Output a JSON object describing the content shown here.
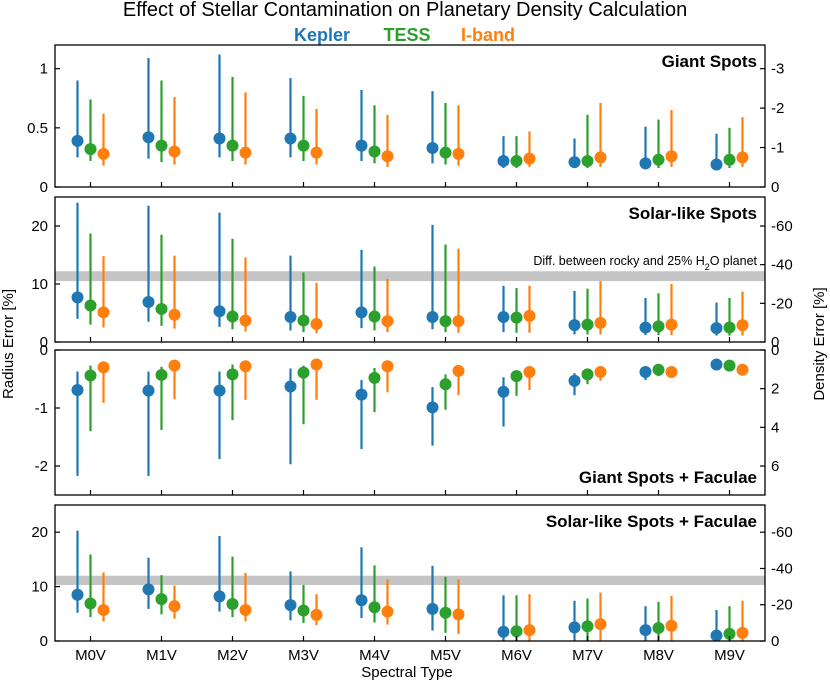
{
  "title": "Effect of Stellar Contamination on Planetary Density Calculation",
  "legend": [
    {
      "label": "Kepler",
      "color": "#1f77b4"
    },
    {
      "label": "TESS",
      "color": "#2ca02c"
    },
    {
      "label": "I-band",
      "color": "#ff7f0e"
    }
  ],
  "chart_data": {
    "type": "scatter",
    "x_label": "Spectral Type",
    "y_label": "Radius Error [%]",
    "y2_label": "Density Error [%]",
    "categories": [
      "M0V",
      "M1V",
      "M2V",
      "M3V",
      "M4V",
      "M5V",
      "M6V",
      "M7V",
      "M8V",
      "M9V"
    ],
    "panels": [
      {
        "title": "Giant Spots",
        "ylim": [
          0,
          1.2
        ],
        "yticks": [
          0,
          0.5,
          1
        ],
        "ytick_labels": [
          "0",
          "0.5",
          "1"
        ],
        "y2ticks": [
          0,
          -1,
          -2,
          -3
        ],
        "y2_factor": -3,
        "title_pos": "top",
        "series": [
          {
            "name": "Kepler",
            "values": [
              0.39,
              0.42,
              0.41,
              0.41,
              0.35,
              0.33,
              0.22,
              0.21,
              0.2,
              0.19
            ],
            "err_low": [
              0.25,
              0.24,
              0.25,
              0.25,
              0.22,
              0.2,
              0.16,
              0.16,
              0.15,
              0.15
            ],
            "err_high": [
              0.9,
              1.09,
              1.12,
              0.92,
              0.82,
              0.81,
              0.43,
              0.41,
              0.51,
              0.45
            ]
          },
          {
            "name": "TESS",
            "values": [
              0.32,
              0.35,
              0.35,
              0.35,
              0.3,
              0.29,
              0.22,
              0.22,
              0.23,
              0.23
            ],
            "err_low": [
              0.22,
              0.21,
              0.22,
              0.22,
              0.2,
              0.19,
              0.16,
              0.16,
              0.16,
              0.16
            ],
            "err_high": [
              0.74,
              0.9,
              0.93,
              0.77,
              0.69,
              0.71,
              0.43,
              0.61,
              0.57,
              0.5
            ]
          },
          {
            "name": "I-band",
            "values": [
              0.28,
              0.3,
              0.29,
              0.29,
              0.26,
              0.28,
              0.24,
              0.25,
              0.26,
              0.25
            ],
            "err_low": [
              0.18,
              0.19,
              0.19,
              0.19,
              0.17,
              0.18,
              0.17,
              0.17,
              0.17,
              0.17
            ],
            "err_high": [
              0.62,
              0.76,
              0.8,
              0.66,
              0.61,
              0.69,
              0.47,
              0.71,
              0.65,
              0.59
            ]
          }
        ]
      },
      {
        "title": "Solar-like Spots",
        "ylim": [
          0,
          25
        ],
        "yticks": [
          0,
          10,
          20
        ],
        "ytick_labels": [
          "0",
          "10",
          "20"
        ],
        "y2ticks": [
          0,
          -20,
          -40,
          -60
        ],
        "y2_factor": -3,
        "title_pos": "top",
        "band": {
          "range": [
            10.5,
            12.2
          ],
          "label": "Diff. between rocky and 25% H",
          "label_sub": "2",
          "label_tail": "O planet"
        },
        "series": [
          {
            "name": "Kepler",
            "values": [
              7.7,
              6.9,
              5.3,
              4.3,
              5.1,
              4.3,
              4.3,
              2.9,
              2.5,
              2.4
            ],
            "err_low": [
              4.0,
              3.5,
              2.6,
              2.0,
              2.4,
              2.2,
              1.7,
              1.3,
              1.2,
              1.1
            ],
            "err_high": [
              24.0,
              23.5,
              22.3,
              14.9,
              15.9,
              20.2,
              9.7,
              8.8,
              7.6,
              6.8
            ]
          },
          {
            "name": "TESS",
            "values": [
              6.3,
              5.7,
              4.4,
              3.7,
              4.4,
              3.6,
              4.2,
              3.0,
              2.7,
              2.5
            ],
            "err_low": [
              3.0,
              2.8,
              2.2,
              1.7,
              2.0,
              1.7,
              1.6,
              1.3,
              1.2,
              1.1
            ],
            "err_high": [
              18.7,
              18.5,
              17.8,
              12.0,
              13.0,
              16.8,
              9.3,
              9.2,
              8.4,
              7.6
            ]
          },
          {
            "name": "I-band",
            "values": [
              5.1,
              4.7,
              3.7,
              3.1,
              3.6,
              3.6,
              4.5,
              3.3,
              3.0,
              2.9
            ],
            "err_low": [
              2.5,
              2.3,
              1.8,
              1.5,
              1.7,
              1.6,
              1.6,
              1.3,
              1.2,
              1.1
            ],
            "err_high": [
              14.8,
              14.9,
              14.6,
              10.2,
              10.9,
              16.1,
              9.7,
              10.5,
              10.0,
              8.7
            ]
          }
        ]
      },
      {
        "title": "Giant Spots + Faculae",
        "ylim": [
          -2.5,
          0
        ],
        "yticks": [
          0,
          -1,
          -2
        ],
        "ytick_labels": [
          "0",
          "-1",
          "-2"
        ],
        "y2ticks": [
          0,
          2,
          4,
          6
        ],
        "y2_factor": -3,
        "title_pos": "bottom",
        "series": [
          {
            "name": "Kepler",
            "values": [
              -0.69,
              -0.7,
              -0.7,
              -0.63,
              -0.77,
              -0.99,
              -0.72,
              -0.53,
              -0.38,
              -0.25
            ],
            "err_low": [
              -2.17,
              -2.17,
              -1.88,
              -1.97,
              -1.71,
              -1.65,
              -1.32,
              -0.78,
              -0.52,
              -0.29
            ],
            "err_high": [
              -0.37,
              -0.37,
              -0.37,
              -0.32,
              -0.52,
              -0.64,
              -0.47,
              -0.4,
              -0.3,
              -0.21
            ]
          },
          {
            "name": "TESS",
            "values": [
              -0.44,
              -0.43,
              -0.42,
              -0.39,
              -0.48,
              -0.59,
              -0.45,
              -0.42,
              -0.34,
              -0.27
            ],
            "err_low": [
              -1.4,
              -1.38,
              -1.21,
              -1.28,
              -1.07,
              -1.03,
              -0.79,
              -0.59,
              -0.45,
              -0.31
            ],
            "err_high": [
              -0.27,
              -0.29,
              -0.25,
              -0.27,
              -0.31,
              -0.42,
              -0.37,
              -0.34,
              -0.27,
              -0.23
            ]
          },
          {
            "name": "I-band",
            "values": [
              -0.3,
              -0.27,
              -0.28,
              -0.25,
              -0.28,
              -0.36,
              -0.38,
              -0.38,
              -0.38,
              -0.34
            ],
            "err_low": [
              -0.91,
              -0.85,
              -0.86,
              -0.86,
              -0.73,
              -0.78,
              -0.69,
              -0.53,
              -0.47,
              -0.39
            ],
            "err_high": [
              -0.22,
              -0.2,
              -0.22,
              -0.18,
              -0.22,
              -0.27,
              -0.32,
              -0.33,
              -0.34,
              -0.29
            ]
          }
        ]
      },
      {
        "title": "Solar-like Spots + Faculae",
        "ylim": [
          0,
          25
        ],
        "yticks": [
          0,
          10,
          20
        ],
        "ytick_labels": [
          "0",
          "10",
          "20"
        ],
        "y2ticks": [
          0,
          -20,
          -40,
          -60
        ],
        "y2_factor": -3,
        "title_pos": "top",
        "band": {
          "range": [
            10.3,
            12.0
          ],
          "label": "",
          "label_sub": "",
          "label_tail": ""
        },
        "series": [
          {
            "name": "Kepler",
            "values": [
              8.5,
              9.5,
              8.2,
              6.6,
              7.5,
              5.9,
              1.7,
              2.5,
              2.0,
              1.0
            ],
            "err_low": [
              5.2,
              5.9,
              5.4,
              3.8,
              4.2,
              1.9,
              0.0,
              0.0,
              0.0,
              0.0
            ],
            "err_high": [
              20.3,
              15.3,
              19.3,
              12.8,
              17.2,
              13.8,
              8.4,
              7.4,
              6.4,
              5.7
            ]
          },
          {
            "name": "TESS",
            "values": [
              6.9,
              7.7,
              6.8,
              5.6,
              6.2,
              5.2,
              1.8,
              2.7,
              2.4,
              1.3
            ],
            "err_low": [
              4.4,
              4.9,
              4.4,
              3.3,
              3.4,
              1.5,
              0.0,
              0.0,
              0.0,
              0.0
            ],
            "err_high": [
              15.9,
              12.1,
              15.5,
              10.3,
              13.9,
              11.8,
              8.4,
              7.8,
              7.2,
              6.4
            ]
          },
          {
            "name": "I-band",
            "values": [
              5.7,
              6.4,
              5.7,
              4.8,
              5.4,
              4.9,
              2.0,
              3.1,
              2.8,
              1.5
            ],
            "err_low": [
              3.6,
              4.1,
              3.6,
              2.9,
              3.0,
              1.3,
              0.0,
              0.0,
              0.0,
              0.0
            ],
            "err_high": [
              12.6,
              10.2,
              12.5,
              8.6,
              11.3,
              11.3,
              8.6,
              8.9,
              8.3,
              7.4
            ]
          }
        ]
      }
    ]
  }
}
